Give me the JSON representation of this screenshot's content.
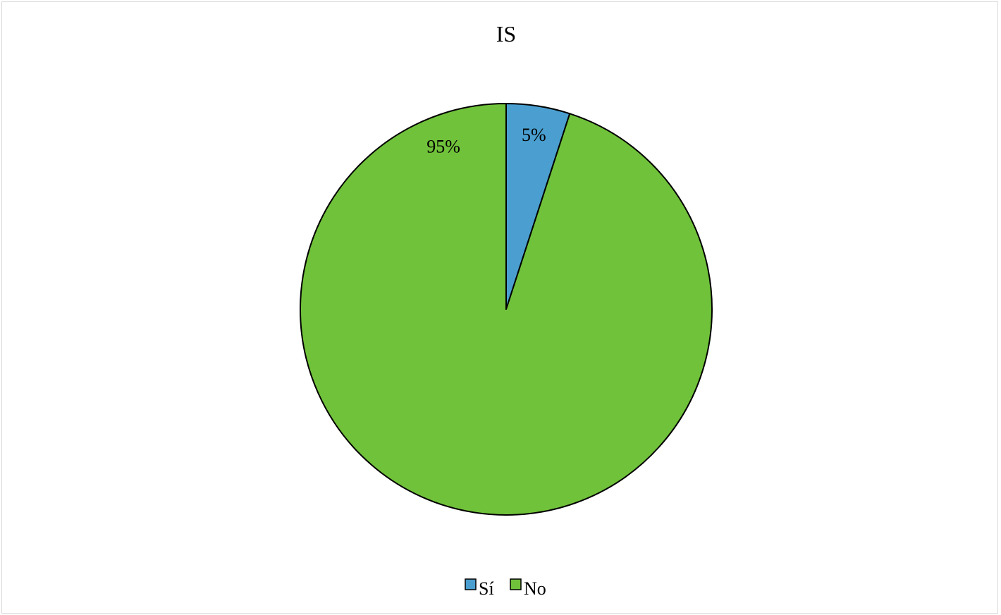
{
  "chart_data": {
    "type": "pie",
    "title": "IS",
    "start_angle_deg": 0,
    "direction": "clockwise",
    "legend_position": "bottom",
    "slices": [
      {
        "label": "Sí",
        "value": 5,
        "display": "5%",
        "color": "#4a9fd0"
      },
      {
        "label": "No",
        "value": 95,
        "display": "95%",
        "color": "#70c23a"
      }
    ]
  }
}
